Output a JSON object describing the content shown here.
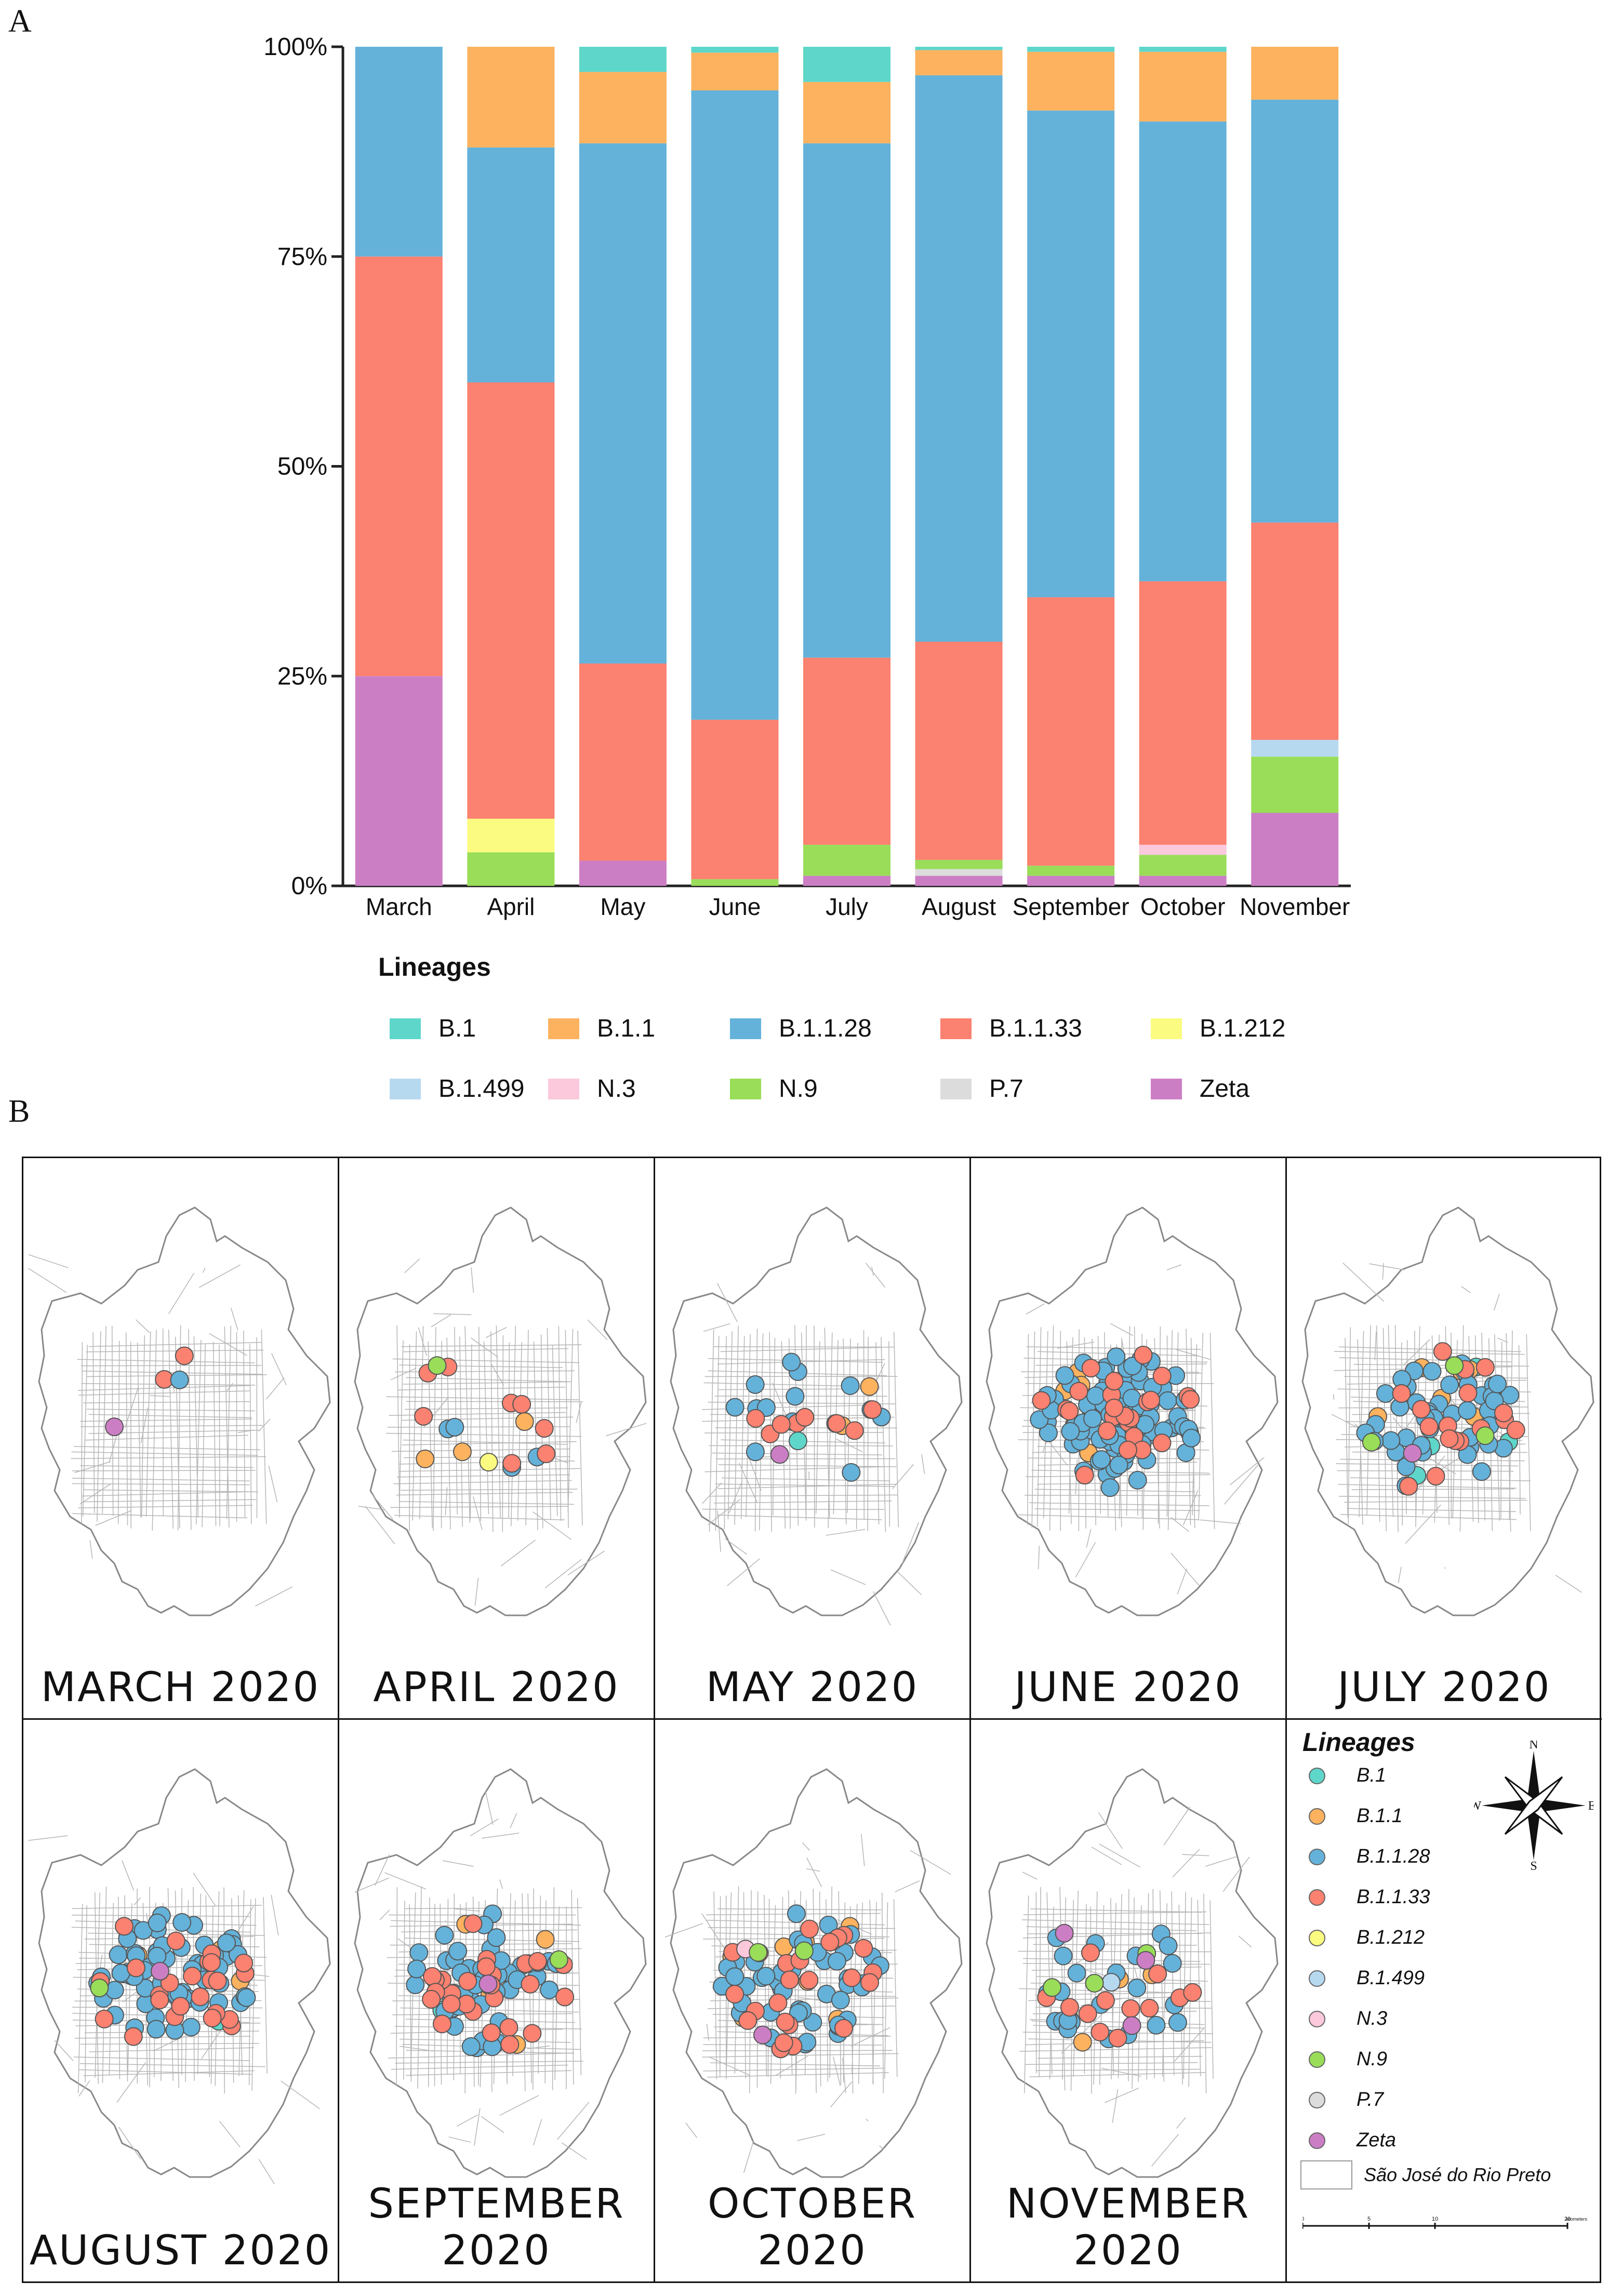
{
  "panel_a_label": "A",
  "panel_b_label": "B",
  "chart_data": {
    "type": "bar",
    "stacked": true,
    "normalized": true,
    "title": "",
    "xlabel": "",
    "ylabel": "",
    "ylim": [
      0,
      100
    ],
    "y_ticks": [
      "0%",
      "25%",
      "50%",
      "75%",
      "100%"
    ],
    "categories": [
      "March",
      "April",
      "May",
      "June",
      "July",
      "August",
      "September",
      "October",
      "November"
    ],
    "series": [
      {
        "name": "Zeta",
        "color": "#cc7ec4",
        "values": [
          25,
          0,
          3,
          0,
          1.2,
          1.2,
          1.2,
          1.2,
          8.7
        ]
      },
      {
        "name": "P.7",
        "color": "#dcdcdc",
        "values": [
          0,
          0,
          0,
          0,
          0,
          0.8,
          0,
          0,
          0
        ]
      },
      {
        "name": "N.9",
        "color": "#99dd59",
        "values": [
          0,
          4,
          0,
          0.8,
          3.7,
          1.1,
          1.2,
          2.5,
          6.7
        ]
      },
      {
        "name": "N.3",
        "color": "#fbc8dc",
        "values": [
          0,
          0,
          0,
          0,
          0,
          0,
          0,
          1.2,
          0
        ]
      },
      {
        "name": "B.1.499",
        "color": "#b7d9f0",
        "values": [
          0,
          0,
          0,
          0,
          0,
          0,
          0,
          0,
          2
        ]
      },
      {
        "name": "B.1.212",
        "color": "#fbfb81",
        "values": [
          0,
          4,
          0,
          0,
          0,
          0,
          0,
          0,
          0
        ]
      },
      {
        "name": "B.1.1.33",
        "color": "#fb8170",
        "values": [
          50,
          52,
          23.5,
          19,
          22.3,
          26,
          32,
          31.4,
          25.9
        ]
      },
      {
        "name": "B.1.1.28",
        "color": "#64b2da",
        "values": [
          25,
          28,
          62,
          75,
          61.3,
          67.5,
          58,
          54.8,
          50.4
        ]
      },
      {
        "name": "B.1.1",
        "color": "#fcb25e",
        "values": [
          0,
          12,
          8.5,
          4.5,
          7.3,
          3,
          7,
          8.3,
          6.3
        ]
      },
      {
        "name": "B.1",
        "color": "#5ed6ca",
        "values": [
          0,
          0,
          3,
          0.7,
          4.2,
          0.4,
          0.6,
          0.6,
          0
        ]
      }
    ]
  },
  "legend": {
    "title": "Lineages",
    "items": [
      {
        "label": "B.1",
        "color": "#5ed6ca"
      },
      {
        "label": "B.1.1",
        "color": "#fcb25e"
      },
      {
        "label": "B.1.1.28",
        "color": "#64b2da"
      },
      {
        "label": "B.1.1.33",
        "color": "#fb8170"
      },
      {
        "label": "B.1.212",
        "color": "#fbfb81"
      },
      {
        "label": "B.1.499",
        "color": "#b7d9f0"
      },
      {
        "label": "N.3",
        "color": "#fbc8dc"
      },
      {
        "label": "N.9",
        "color": "#99dd59"
      },
      {
        "label": "P.7",
        "color": "#dcdcdc"
      },
      {
        "label": "Zeta",
        "color": "#cc7ec4"
      }
    ]
  },
  "maps": [
    {
      "label": "MARCH 2020",
      "counts": {
        "B.1.1.33": 2,
        "B.1.1.28": 1,
        "Zeta": 1
      }
    },
    {
      "label": "APRIL 2020",
      "counts": {
        "B.1.1": 3,
        "B.1.1.28": 4,
        "B.1.1.33": 8,
        "B.1.212": 1,
        "N.9": 1
      }
    },
    {
      "label": "MAY 2020",
      "counts": {
        "B.1": 1,
        "B.1.1": 2,
        "B.1.1.28": 14,
        "B.1.1.33": 8,
        "Zeta": 1
      }
    },
    {
      "label": "JUNE 2020",
      "counts": {
        "B.1": 1,
        "B.1.1": 5,
        "B.1.1.28": 90,
        "B.1.1.33": 24
      }
    },
    {
      "label": "JULY 2020",
      "counts": {
        "B.1": 4,
        "B.1.1": 6,
        "B.1.1.28": 45,
        "B.1.1.33": 17,
        "N.9": 3,
        "Zeta": 1
      }
    },
    {
      "label": "AUGUST 2020",
      "counts": {
        "B.1": 1,
        "B.1.1": 3,
        "B.1.1.28": 60,
        "B.1.1.33": 24,
        "N.9": 1,
        "Zeta": 1
      }
    },
    {
      "label": "SEPTEMBER 2020",
      "counts": {
        "B.1": 1,
        "B.1.1": 6,
        "B.1.1.28": 48,
        "B.1.1.33": 27,
        "N.9": 1,
        "Zeta": 1
      }
    },
    {
      "label": "OCTOBER 2020",
      "counts": {
        "B.1.1": 7,
        "B.1.1.28": 44,
        "B.1.1.33": 25,
        "N.3": 1,
        "N.9": 2,
        "Zeta": 1
      }
    },
    {
      "label": "NOVEMBER 2020",
      "counts": {
        "B.1.1": 3,
        "B.1.1.28": 24,
        "B.1.1.33": 12,
        "B.1.499": 1,
        "N.9": 3,
        "Zeta": 3
      }
    }
  ],
  "map_legend": {
    "title": "Lineages",
    "items": [
      {
        "label": "B.1",
        "color": "#5ed6ca"
      },
      {
        "label": "B.1.1",
        "color": "#fcb25e"
      },
      {
        "label": "B.1.1.28",
        "color": "#64b2da"
      },
      {
        "label": "B.1.1.33",
        "color": "#fb8170"
      },
      {
        "label": "B.1.212",
        "color": "#fbfb81"
      },
      {
        "label": "B.1.499",
        "color": "#b7d9f0"
      },
      {
        "label": "N.3",
        "color": "#fbc8dc"
      },
      {
        "label": "N.9",
        "color": "#99dd59"
      },
      {
        "label": "P.7",
        "color": "#dcdcdc"
      },
      {
        "label": "Zeta",
        "color": "#cc7ec4"
      }
    ],
    "area_label": "São José do Rio Preto",
    "compass": {
      "n": "N",
      "e": "E",
      "s": "S",
      "w": "W"
    },
    "scale_ticks": [
      "0",
      "5",
      "10",
      "20"
    ],
    "scale_unit": "kilometers"
  }
}
